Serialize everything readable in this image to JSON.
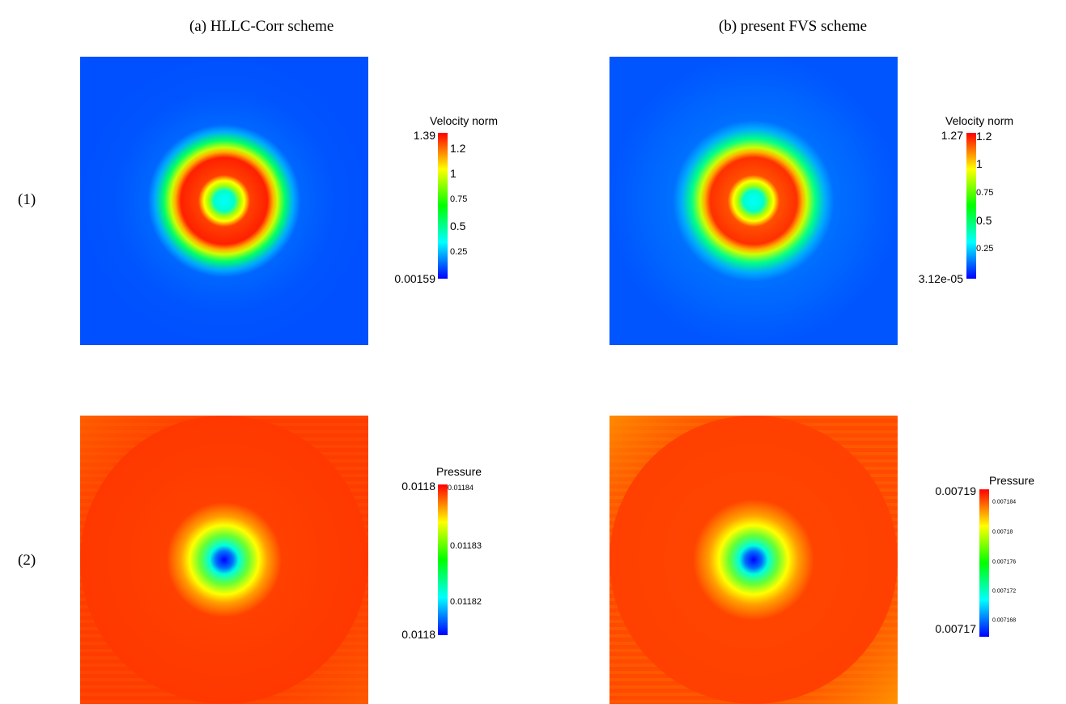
{
  "columns": [
    {
      "title": "(a) HLLC-Corr scheme"
    },
    {
      "title": "(b) present FVS scheme"
    }
  ],
  "rows": [
    {
      "label": "(1)"
    },
    {
      "label": "(2)"
    }
  ],
  "colorbars": {
    "a1": {
      "title": "Velocity norm",
      "max_label": "1.39",
      "min_label": "0.00159",
      "ticks": [
        "1.2",
        "1",
        "0.75",
        "0.5",
        "0.25"
      ]
    },
    "b1": {
      "title": "Velocity norm",
      "max_label": "1.27",
      "min_label": "3.12e-05",
      "ticks": [
        "1.2",
        "1",
        "0.75",
        "0.5",
        "0.25"
      ]
    },
    "a2": {
      "title": "Pressure",
      "max_label": "0.0118",
      "min_label": "0.0118",
      "ticks": [
        "0.01184",
        "0.01183",
        "0.01182"
      ]
    },
    "b2": {
      "title": "Pressure",
      "max_label": "0.00719",
      "min_label": "0.00717",
      "ticks": [
        "0.007184",
        "0.00718",
        "0.007176",
        "0.007172",
        "0.007168"
      ]
    }
  },
  "colormap": [
    "#0000ff",
    "#00ffff",
    "#00ff00",
    "#ffff00",
    "#ff0000"
  ],
  "background_color": "#ffffff"
}
